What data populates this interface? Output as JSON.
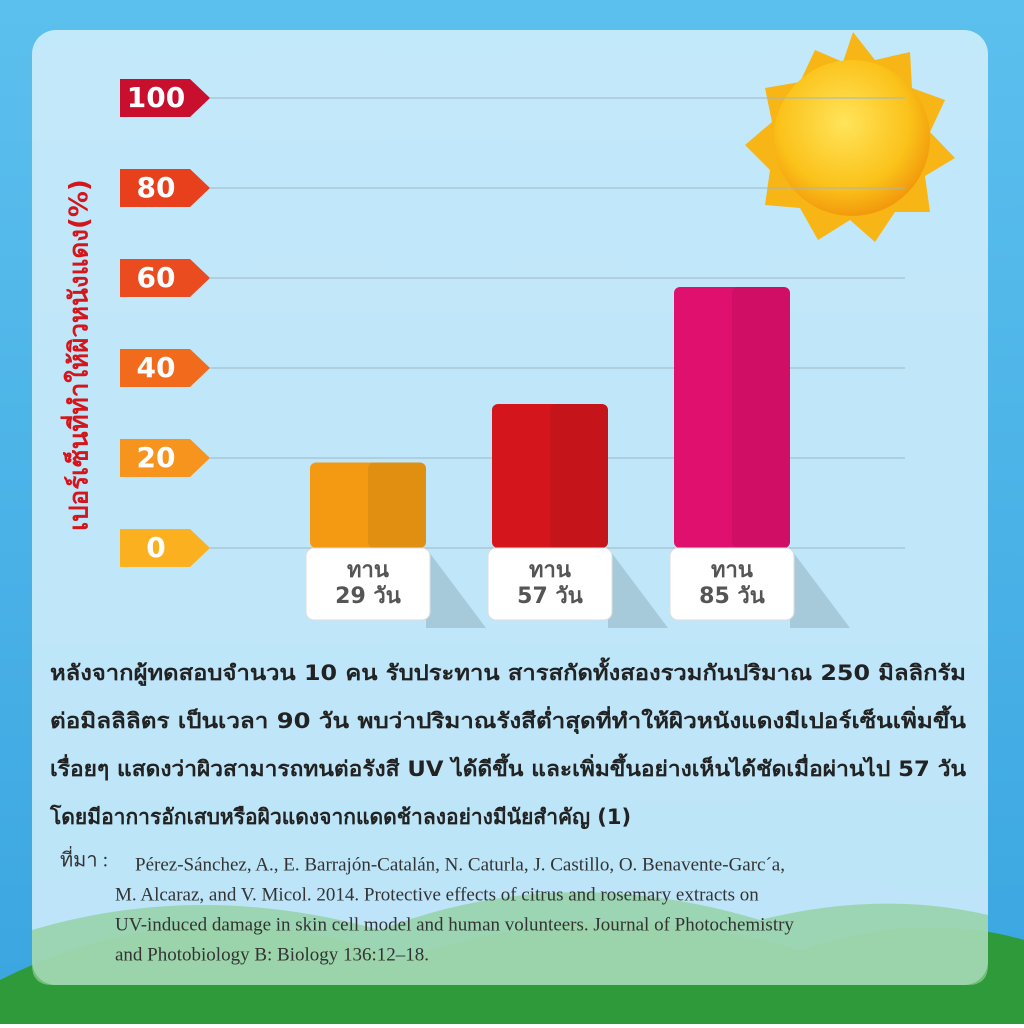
{
  "chart_data": {
    "type": "bar",
    "y_label": "เปอร์เซ็นที่ทำให้ผิวหนังแดง(%)",
    "categories": [
      "ทาน\n29 วัน",
      "ทาน\n57 วัน",
      "ทาน\n85 วัน"
    ],
    "values": [
      19,
      32,
      58
    ],
    "colors": [
      "#f39a12",
      "#d4161c",
      "#e0106e"
    ],
    "ylim": [
      0,
      100
    ],
    "yticks": [
      0,
      20,
      40,
      60,
      80,
      100
    ],
    "tick_colors": [
      "#fbb11f",
      "#f7941d",
      "#f26b1d",
      "#ea4b1f",
      "#e8401c",
      "#c8102e"
    ],
    "grid": true
  },
  "description": [
    "หลังจากผู้ทดสอบจำนวน 10 คน รับประทาน สารสกัดทั้งสองรวมกันปริมาณ 250 มิลลิกรัม",
    "ต่อมิลลิลิตร เป็นเวลา 90 วัน พบว่าปริมาณรังสีต่ำสุดที่ทำให้ผิวหนังแดงมีเปอร์เซ็นเพิ่มขึ้น",
    "เรื่อยๆ แสดงว่าผิวสามารถทนต่อรังสี UV ได้ดีขึ้น และเพิ่มขึ้นอย่างเห็นได้ชัดเมื่อผ่านไป 57 วัน",
    "โดยมีอาการอักเสบหรือผิวแดงจากแดดช้าลงอย่างมีนัยสำคัญ (1)"
  ],
  "source": {
    "label": "ที่มา :",
    "lines": [
      "Pérez-Sánchez, A., E. Barrajón-Catalán, N. Caturla, J. Castillo, O. Benavente-Garc´a,",
      "M. Alcaraz, and V. Micol. 2014. Protective effects of citrus and  rosemary extracts on",
      "UV-induced damage in skin cell model and human volunteers. Journal of Photochemistry",
      "and Photobiology B: Biology 136:12–18."
    ]
  }
}
